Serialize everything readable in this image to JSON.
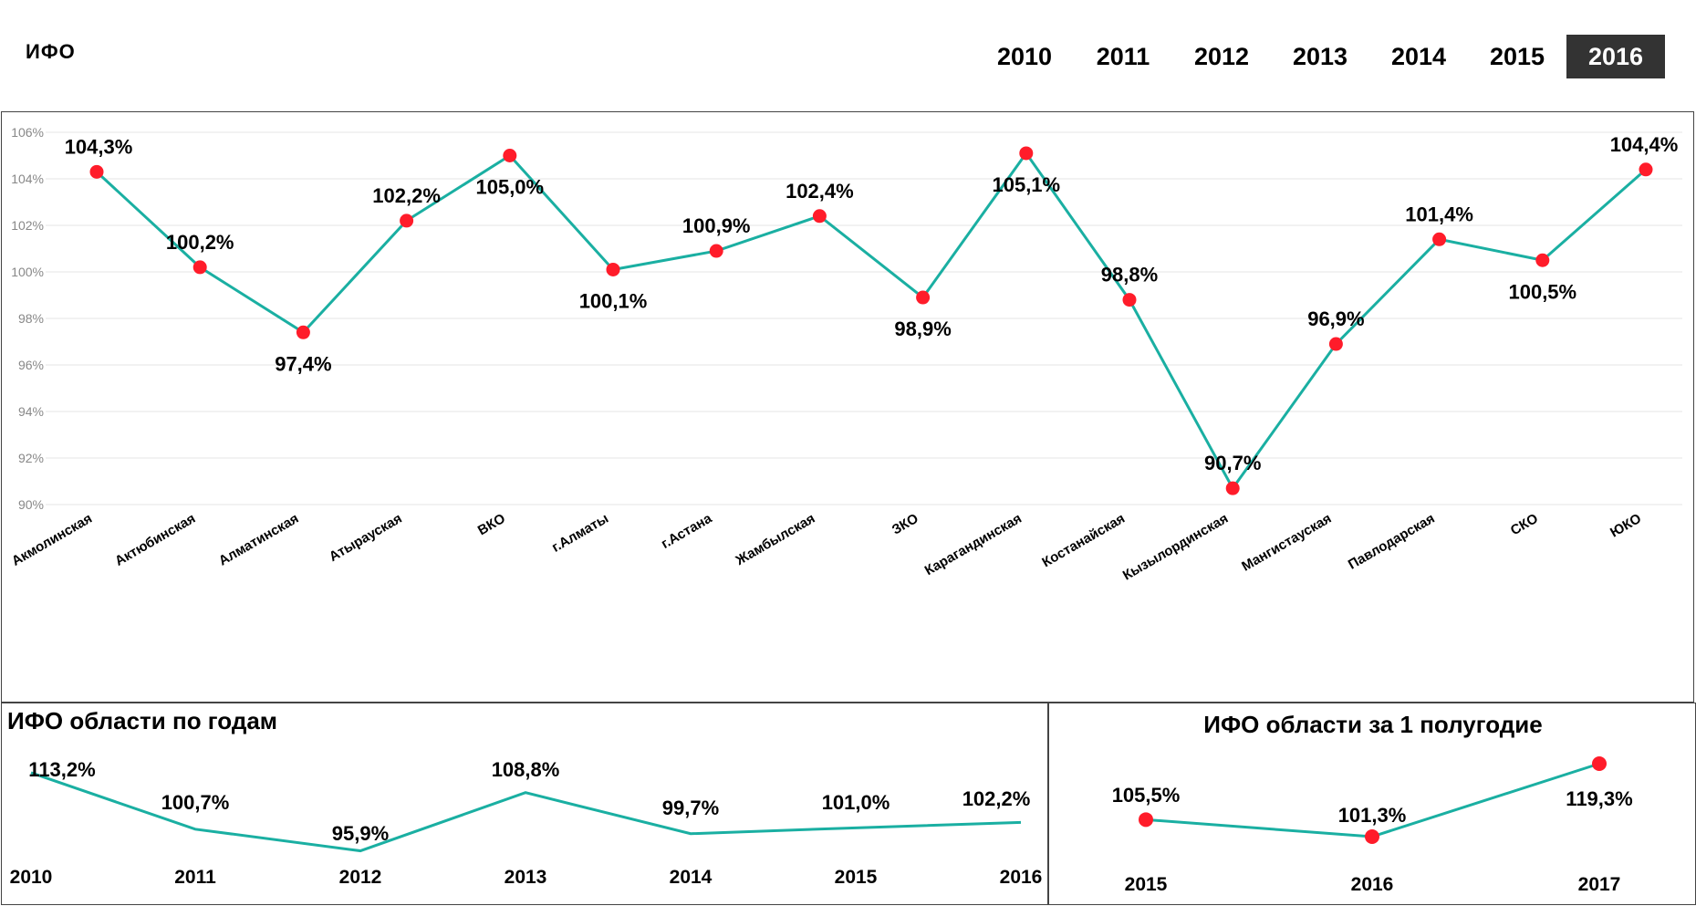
{
  "header": {
    "title": "ИФО",
    "years": [
      "2010",
      "2011",
      "2012",
      "2013",
      "2014",
      "2015",
      "2016"
    ],
    "active_year": "2016"
  },
  "colors": {
    "line": "#1aafa2",
    "marker": "#ff1c2a",
    "grid": "#e6e6e6",
    "active_tab_bg": "#333333"
  },
  "chart_data": [
    {
      "id": "regions",
      "type": "line",
      "title": "",
      "xlabel": "",
      "ylabel": "",
      "categories": [
        "Акмолинская",
        "Актюбинская",
        "Алматинская",
        "Атырауская",
        "ВКО",
        "г.Алматы",
        "г.Астана",
        "Жамбылская",
        "ЗКО",
        "Карагандинская",
        "Костанайская",
        "Кызылординская",
        "Мангистауская",
        "Павлодарская",
        "СКО",
        "ЮКО"
      ],
      "values": [
        104.3,
        100.2,
        97.4,
        102.2,
        105.0,
        100.1,
        100.9,
        102.4,
        98.9,
        105.1,
        98.8,
        90.7,
        96.9,
        101.4,
        100.5,
        104.4
      ],
      "data_labels": [
        "104,3%",
        "100,2%",
        "97,4%",
        "102,2%",
        "105,0%",
        "100,1%",
        "100,9%",
        "102,4%",
        "98,9%",
        "105,1%",
        "98,8%",
        "90,7%",
        "96,9%",
        "101,4%",
        "100,5%",
        "104,4%"
      ],
      "ylim": [
        90,
        106
      ],
      "yticks": [
        90,
        92,
        94,
        96,
        98,
        100,
        102,
        104,
        106
      ],
      "ytick_labels": [
        "90%",
        "92%",
        "94%",
        "96%",
        "98%",
        "100%",
        "102%",
        "104%",
        "106%"
      ],
      "grid": true,
      "markers": true
    },
    {
      "id": "by_years",
      "type": "line",
      "title": "ИФО области по годам",
      "categories": [
        "2010",
        "2011",
        "2012",
        "2013",
        "2014",
        "2015",
        "2016"
      ],
      "values": [
        113.2,
        100.7,
        95.9,
        108.8,
        99.7,
        101.0,
        102.2
      ],
      "data_labels": [
        "113,2%",
        "100,7%",
        "95,9%",
        "108,8%",
        "99,7%",
        "101,0%",
        "102,2%"
      ],
      "grid": false,
      "markers": false
    },
    {
      "id": "half_year",
      "type": "line",
      "title": "ИФО области за 1 полугодие",
      "categories": [
        "2015",
        "2016",
        "2017"
      ],
      "values": [
        105.5,
        101.3,
        119.3
      ],
      "data_labels": [
        "105,5%",
        "101,3%",
        "119,3%"
      ],
      "grid": false,
      "markers": true
    }
  ]
}
